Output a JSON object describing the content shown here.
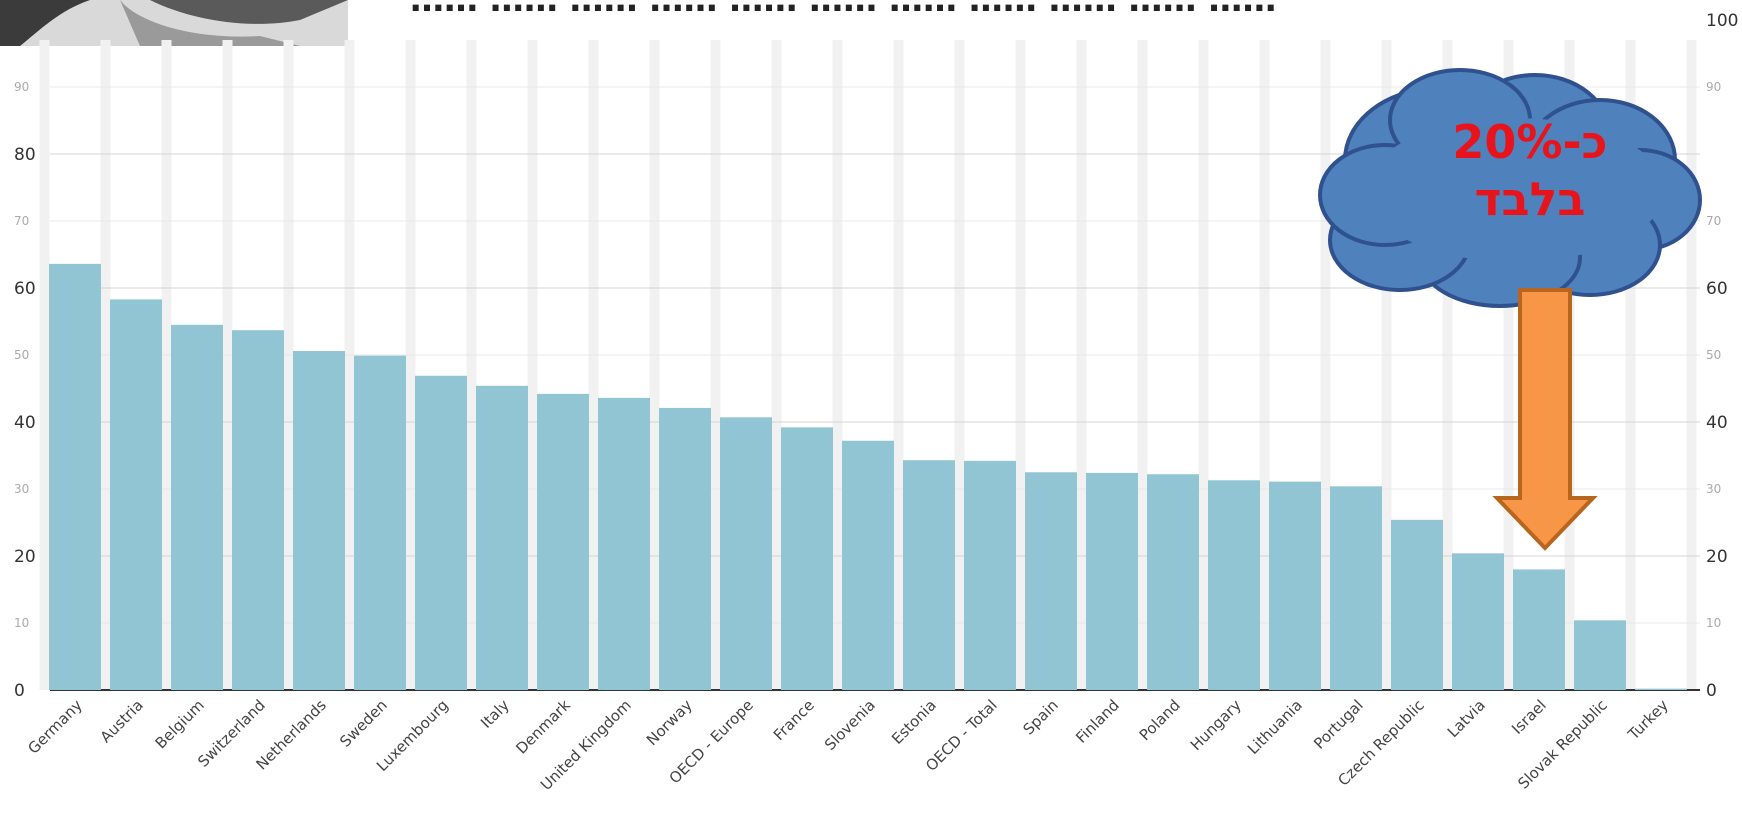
{
  "chart_data": {
    "type": "bar",
    "title": "",
    "xlabel": "",
    "ylabel": "",
    "ylim": [
      0,
      100
    ],
    "grid": true,
    "y_major_ticks": [
      0,
      20,
      40,
      60,
      80
    ],
    "y_minor_ticks": [
      10,
      30,
      50,
      70,
      90
    ],
    "y_right_ticks": [
      "0",
      "10",
      "20",
      "30",
      "40",
      "50",
      "60",
      "70",
      "90",
      "100"
    ],
    "categories": [
      "Germany",
      "Austria",
      "Belgium",
      "Switzerland",
      "Netherlands",
      "Sweden",
      "Luxembourg",
      "Italy",
      "Denmark",
      "United Kingdom",
      "Norway",
      "OECD - Europe",
      "France",
      "Slovenia",
      "Estonia",
      "OECD - Total",
      "Spain",
      "Finland",
      "Poland",
      "Hungary",
      "Lithuania",
      "Portugal",
      "Czech Republic",
      "Latvia",
      "Israel",
      "Slovak Republic",
      "Turkey"
    ],
    "values": [
      63.6,
      58.3,
      54.5,
      53.7,
      50.6,
      49.9,
      46.9,
      45.4,
      44.2,
      43.6,
      42.1,
      40.7,
      39.2,
      37.2,
      34.3,
      34.2,
      32.5,
      32.4,
      32.2,
      31.3,
      31.1,
      30.4,
      25.4,
      20.4,
      18.0,
      10.4,
      0.2
    ],
    "bar_color": "#92c5d3",
    "annotation": {
      "callout_text_line1": "כ-20%",
      "callout_text_line2": "בלבד",
      "callout_color": "#4f81bd",
      "callout_text_color": "#e8141b",
      "arrow_color": "#f79646",
      "arrow_outline": "#b8651e",
      "points_to": "Israel"
    }
  },
  "header": {
    "title_fragment": "…… …… …… …… …… …… …… …… …… …… ……"
  }
}
